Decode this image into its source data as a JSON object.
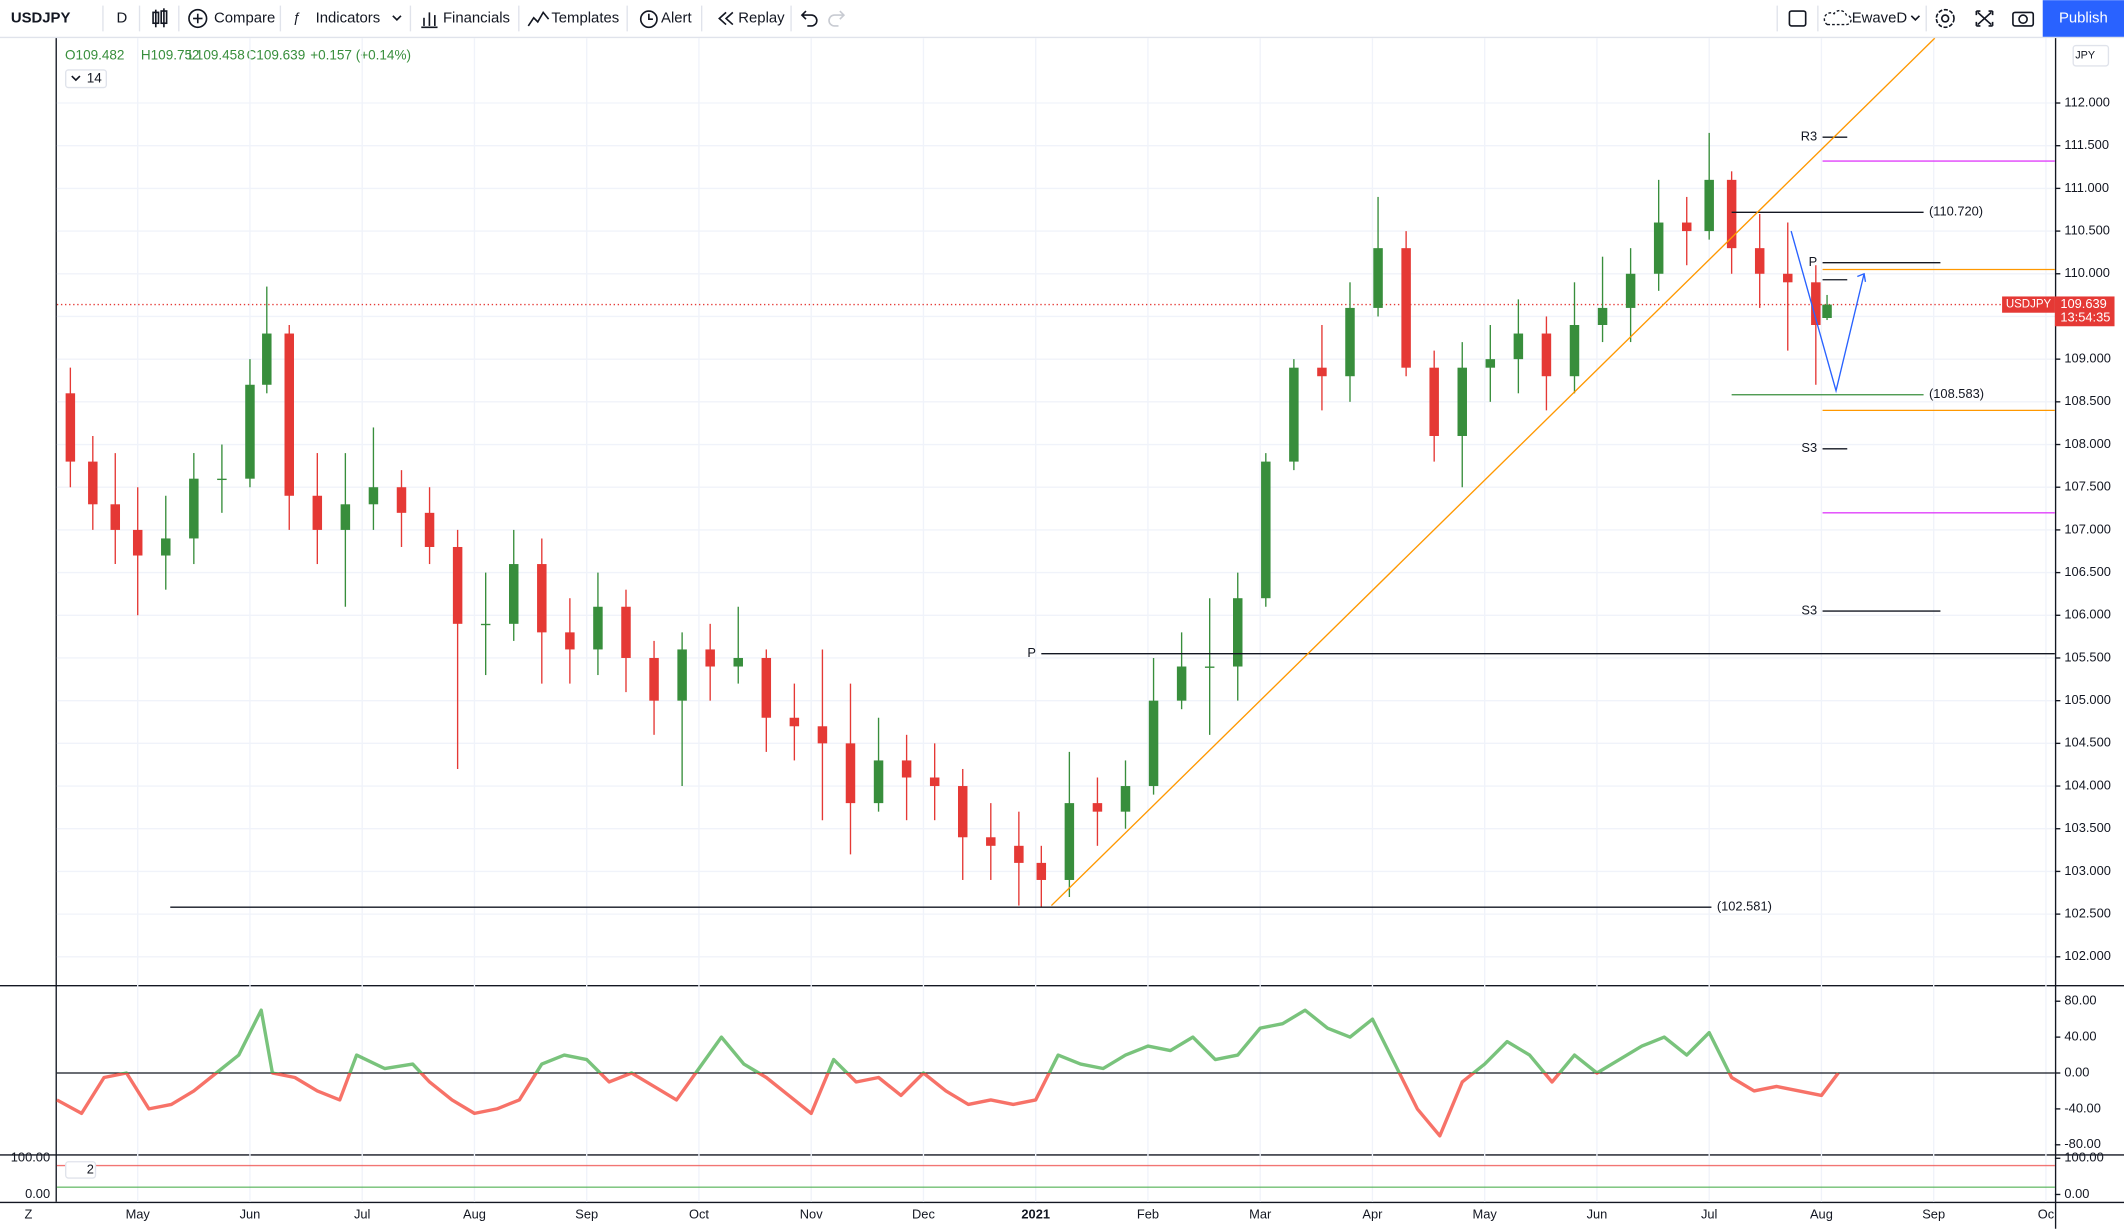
{
  "toolbar": {
    "symbol": "USDJPY",
    "interval": "D",
    "buttons": [
      "Compare",
      "Indicators",
      "Financials",
      "Templates",
      "Alert",
      "Replay"
    ],
    "layout": "EwaveD",
    "publish": "Publish"
  },
  "legend": {
    "open": "O109.482",
    "high": "H109.752",
    "low": "L109.458",
    "close": "C109.639",
    "change": "+0.157 (+0.14%)",
    "indicator": "14"
  },
  "chart_data": [
    {
      "type": "candlestick",
      "symbol_label": "USDJPY",
      "currency": "JPY",
      "last_price": 109.639,
      "countdown": "13:54:35",
      "up_color": "#388e3c",
      "down_color": "#e53935",
      "grid": true,
      "x": [
        -0.6,
        -0.4,
        -0.2,
        0,
        0.25,
        0.5,
        0.75,
        1,
        1.15,
        1.35,
        1.6,
        1.85,
        2.1,
        2.35,
        2.6,
        2.85,
        3.1,
        3.35,
        3.6,
        3.85,
        4.1,
        4.35,
        4.6,
        4.85,
        5.1,
        5.35,
        5.6,
        5.85,
        6.1,
        6.35,
        6.6,
        6.85,
        7.1,
        7.35,
        7.6,
        7.85,
        8.05,
        8.3,
        8.55,
        8.8,
        9.05,
        9.3,
        9.55,
        9.8,
        10.05,
        10.3,
        10.55,
        10.8,
        11.05,
        11.3,
        11.55,
        11.8,
        12.05,
        12.3,
        12.55,
        12.8,
        13.05,
        13.3,
        13.55,
        13.8,
        14.0,
        14.2,
        14.45,
        14.7,
        14.95,
        15.05
      ],
      "open": [
        108.6,
        107.8,
        107.3,
        107.0,
        106.7,
        106.9,
        107.6,
        107.6,
        108.7,
        109.3,
        107.4,
        107.0,
        107.3,
        107.5,
        107.2,
        106.8,
        105.9,
        105.9,
        106.6,
        105.8,
        105.6,
        106.1,
        105.5,
        105.0,
        105.6,
        105.4,
        105.5,
        104.8,
        104.7,
        104.5,
        103.8,
        104.3,
        104.1,
        104.0,
        103.4,
        103.3,
        103.1,
        102.9,
        103.8,
        103.7,
        104.0,
        105.0,
        105.4,
        105.4,
        106.2,
        107.8,
        108.9,
        108.8,
        109.6,
        110.3,
        108.9,
        108.1,
        108.9,
        109.0,
        109.3,
        108.8,
        109.4,
        109.6,
        110.0,
        110.6,
        110.5,
        111.1,
        110.3,
        110.0,
        109.9,
        109.482
      ],
      "high": [
        108.9,
        108.1,
        107.9,
        107.5,
        107.4,
        107.9,
        108.0,
        109.0,
        109.85,
        109.4,
        107.9,
        107.9,
        108.2,
        107.7,
        107.5,
        107.0,
        106.5,
        107.0,
        106.9,
        106.2,
        106.5,
        106.3,
        105.7,
        105.8,
        105.9,
        106.1,
        105.6,
        105.2,
        105.6,
        105.2,
        104.8,
        104.6,
        104.5,
        104.2,
        103.8,
        103.7,
        103.3,
        104.4,
        104.1,
        104.3,
        105.5,
        105.8,
        106.2,
        106.5,
        107.9,
        109.0,
        109.4,
        109.9,
        110.9,
        110.5,
        109.1,
        109.2,
        109.4,
        109.7,
        109.5,
        109.9,
        110.2,
        110.3,
        111.1,
        110.9,
        111.65,
        111.2,
        110.7,
        110.6,
        110.1,
        109.752
      ],
      "low": [
        107.5,
        107.0,
        106.6,
        106.0,
        106.3,
        106.6,
        107.2,
        107.5,
        108.6,
        107.0,
        106.6,
        106.1,
        107.0,
        106.8,
        106.6,
        104.2,
        105.3,
        105.7,
        105.2,
        105.2,
        105.3,
        105.1,
        104.6,
        104.0,
        105.0,
        105.2,
        104.4,
        104.3,
        103.6,
        103.2,
        103.7,
        103.6,
        103.6,
        102.9,
        102.9,
        102.6,
        102.58,
        102.7,
        103.3,
        103.5,
        103.9,
        104.9,
        104.6,
        105.0,
        106.1,
        107.7,
        108.4,
        108.5,
        109.5,
        108.8,
        107.8,
        107.5,
        108.5,
        108.6,
        108.4,
        108.6,
        109.2,
        109.2,
        109.8,
        110.1,
        110.4,
        110.0,
        109.6,
        109.1,
        108.7,
        109.458
      ],
      "close": [
        107.8,
        107.3,
        107.0,
        106.7,
        106.9,
        107.6,
        107.6,
        108.7,
        109.3,
        107.4,
        107.0,
        107.3,
        107.5,
        107.2,
        106.8,
        105.9,
        105.9,
        106.6,
        105.8,
        105.6,
        106.1,
        105.5,
        105.0,
        105.6,
        105.4,
        105.5,
        104.8,
        104.7,
        104.5,
        103.8,
        104.3,
        104.1,
        104.0,
        103.4,
        103.3,
        103.1,
        102.9,
        103.8,
        103.7,
        104.0,
        105.0,
        105.4,
        105.4,
        106.2,
        107.8,
        108.9,
        108.8,
        109.6,
        110.3,
        108.9,
        108.1,
        108.9,
        109.0,
        109.3,
        108.8,
        109.4,
        109.6,
        110.0,
        110.6,
        110.5,
        111.1,
        110.3,
        110.0,
        109.9,
        109.4,
        109.639
      ],
      "xlim": [
        -0.72,
        17.08
      ],
      "xticks": [
        {
          "value": 0,
          "label": "May"
        },
        {
          "value": 1,
          "label": "Jun"
        },
        {
          "value": 2,
          "label": "Jul"
        },
        {
          "value": 3,
          "label": "Aug"
        },
        {
          "value": 4,
          "label": "Sep"
        },
        {
          "value": 5,
          "label": "Oct"
        },
        {
          "value": 6,
          "label": "Nov"
        },
        {
          "value": 7,
          "label": "Dec"
        },
        {
          "value": 8,
          "label": "2021"
        },
        {
          "value": 9,
          "label": "Feb"
        },
        {
          "value": 10,
          "label": "Mar"
        },
        {
          "value": 11,
          "label": "Apr"
        },
        {
          "value": 12,
          "label": "May"
        },
        {
          "value": 13,
          "label": "Jun"
        },
        {
          "value": 14,
          "label": "Jul"
        },
        {
          "value": 15,
          "label": "Aug"
        },
        {
          "value": 16,
          "label": "Sep"
        },
        {
          "value": 17,
          "label": "Oc"
        }
      ],
      "ylim": [
        101.67,
        112.76
      ],
      "yticks": [
        {
          "value": 102,
          "label": "102.000"
        },
        {
          "value": 102.5,
          "label": "102.500"
        },
        {
          "value": 103,
          "label": "103.000"
        },
        {
          "value": 103.5,
          "label": "103.500"
        },
        {
          "value": 104,
          "label": "104.000"
        },
        {
          "value": 104.5,
          "label": "104.500"
        },
        {
          "value": 105,
          "label": "105.000"
        },
        {
          "value": 105.5,
          "label": "105.500"
        },
        {
          "value": 106,
          "label": "106.000"
        },
        {
          "value": 106.5,
          "label": "106.500"
        },
        {
          "value": 107,
          "label": "107.000"
        },
        {
          "value": 107.5,
          "label": "107.500"
        },
        {
          "value": 108,
          "label": "108.000"
        },
        {
          "value": 108.5,
          "label": "108.500"
        },
        {
          "value": 109,
          "label": "109.000"
        },
        {
          "value": 109.5,
          "label": "109.500"
        },
        {
          "value": 110,
          "label": "110.000"
        },
        {
          "value": 110.5,
          "label": "110.500"
        },
        {
          "value": 111,
          "label": "111.000"
        },
        {
          "value": 111.5,
          "label": "111.500"
        },
        {
          "value": 112,
          "label": "112.000"
        }
      ],
      "levels": [
        {
          "value": 110.72,
          "label": "(110.720)",
          "x": [
            14.2,
            15.91
          ],
          "color": "#131722"
        },
        {
          "value": 108.583,
          "label": "(108.583)",
          "x": [
            14.2,
            15.91
          ],
          "color": "#388e3c"
        },
        {
          "value": 102.581,
          "label": "(102.581)",
          "x": [
            0.29,
            14.02
          ],
          "color": "#131722"
        },
        {
          "value": 105.55,
          "label": "P",
          "x": [
            8.05,
            17.08
          ],
          "color": "#131722"
        },
        {
          "value": 111.6,
          "label": "R3",
          "x": [
            15.01,
            15.23
          ],
          "color": "#131722"
        },
        {
          "value": 110.13,
          "label": "P",
          "x": [
            15.01,
            16.06
          ],
          "color": "#131722"
        },
        {
          "value": 109.93,
          "x": [
            15.01,
            15.23
          ],
          "color": "#131722"
        },
        {
          "value": 107.95,
          "label": "S3",
          "x": [
            15.01,
            15.23
          ],
          "color": "#131722"
        },
        {
          "value": 106.05,
          "label": "S3",
          "x": [
            15.01,
            16.06
          ],
          "color": "#131722"
        },
        {
          "value": 111.32,
          "x": [
            15.01,
            17.08
          ],
          "color": "#e040fb"
        },
        {
          "value": 107.2,
          "x": [
            15.01,
            17.08
          ],
          "color": "#e040fb"
        },
        {
          "value": 110.05,
          "x": [
            15.01,
            17.08
          ],
          "color": "#ff9800"
        },
        {
          "value": 108.4,
          "x": [
            15.01,
            17.08
          ],
          "color": "#ff9800"
        }
      ],
      "trendline": {
        "x": [
          8.14,
          16.01
        ],
        "y": [
          102.6,
          112.76
        ],
        "color": "#ff9800"
      },
      "projection": {
        "x": [
          14.73,
          15.13,
          15.38
        ],
        "y": [
          110.5,
          108.63,
          110.0
        ],
        "color": "#2962ff"
      }
    },
    {
      "type": "line",
      "pos_color": "#4caf50",
      "neg_color": "#f44336",
      "x": [
        -0.72,
        -0.5,
        -0.3,
        -0.1,
        0.1,
        0.3,
        0.5,
        0.7,
        0.9,
        1.0,
        1.1,
        1.2,
        1.4,
        1.6,
        1.8,
        1.95,
        2.2,
        2.45,
        2.6,
        2.8,
        3.0,
        3.2,
        3.4,
        3.6,
        3.8,
        4.0,
        4.2,
        4.4,
        4.6,
        4.8,
        5.0,
        5.2,
        5.4,
        5.6,
        5.8,
        6.0,
        6.2,
        6.4,
        6.6,
        6.8,
        7.0,
        7.2,
        7.4,
        7.6,
        7.8,
        8.0,
        8.2,
        8.4,
        8.6,
        8.8,
        9.0,
        9.2,
        9.4,
        9.6,
        9.8,
        10.0,
        10.2,
        10.4,
        10.6,
        10.8,
        11.0,
        11.2,
        11.4,
        11.6,
        11.8,
        12.0,
        12.2,
        12.4,
        12.6,
        12.8,
        13.0,
        13.2,
        13.4,
        13.6,
        13.8,
        14.0,
        14.2,
        14.4,
        14.6,
        14.8,
        15.0,
        15.15
      ],
      "values": [
        -30,
        -45,
        -5,
        0,
        -40,
        -35,
        -20,
        0,
        20,
        45,
        70,
        0,
        -5,
        -20,
        -30,
        20,
        5,
        10,
        -10,
        -30,
        -45,
        -40,
        -30,
        10,
        20,
        15,
        -10,
        0,
        -15,
        -30,
        5,
        40,
        10,
        -5,
        -25,
        -45,
        15,
        -10,
        -5,
        -25,
        0,
        -20,
        -35,
        -30,
        -35,
        -30,
        20,
        10,
        5,
        20,
        30,
        25,
        40,
        15,
        20,
        50,
        55,
        70,
        50,
        40,
        60,
        10,
        -40,
        -70,
        -10,
        10,
        35,
        20,
        -10,
        20,
        0,
        15,
        30,
        40,
        20,
        45,
        -5,
        -20,
        -15,
        -20,
        -25,
        0
      ],
      "ylim": [
        -90.6,
        98.1
      ],
      "yticks": [
        {
          "value": 80,
          "label": "80.00"
        },
        {
          "value": 40,
          "label": "40.00"
        },
        {
          "value": 0,
          "label": "0.00"
        },
        {
          "value": -40,
          "label": "-40.00"
        },
        {
          "value": -80,
          "label": "-80.00"
        }
      ]
    },
    {
      "type": "levels",
      "settings_label": "2",
      "ylim": [
        -20,
        111
      ],
      "yticks": [
        {
          "value": 100,
          "label": "100.00"
        },
        {
          "value": 0,
          "label": "0.00"
        }
      ],
      "levels": [
        {
          "value": 80,
          "color": "#ef5350"
        },
        {
          "value": 20,
          "color": "#4caf50"
        }
      ]
    }
  ]
}
